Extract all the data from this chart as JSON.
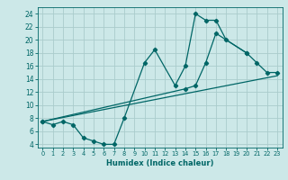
{
  "xlabel": "Humidex (Indice chaleur)",
  "bg_color": "#cce8e8",
  "grid_color": "#aacccc",
  "line_color": "#006666",
  "xlim": [
    -0.5,
    23.5
  ],
  "ylim": [
    3.5,
    25
  ],
  "xticks": [
    0,
    1,
    2,
    3,
    4,
    5,
    6,
    7,
    8,
    9,
    10,
    11,
    12,
    13,
    14,
    15,
    16,
    17,
    18,
    19,
    20,
    21,
    22,
    23
  ],
  "yticks": [
    4,
    6,
    8,
    10,
    12,
    14,
    16,
    18,
    20,
    22,
    24
  ],
  "curve1_x": [
    0,
    1,
    2,
    3,
    4,
    5,
    6,
    7,
    8,
    10,
    11,
    13,
    14,
    15,
    16,
    17,
    18,
    20
  ],
  "curve1_y": [
    7.5,
    7.0,
    7.5,
    7.0,
    5.0,
    4.5,
    4.0,
    4.0,
    8.0,
    16.5,
    18.5,
    13.0,
    16.0,
    24.0,
    23.0,
    23.0,
    20.0,
    18.0
  ],
  "curve2_x": [
    0,
    14,
    15,
    16,
    17,
    20,
    21,
    22,
    23
  ],
  "curve2_y": [
    7.5,
    12.5,
    13.0,
    16.5,
    21.0,
    18.0,
    16.5,
    15.0,
    15.0
  ],
  "curve3_x": [
    0,
    23
  ],
  "curve3_y": [
    7.5,
    14.5
  ]
}
